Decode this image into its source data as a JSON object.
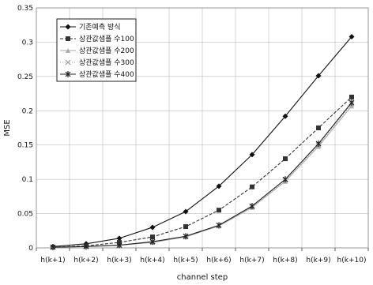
{
  "chart_data": {
    "type": "line",
    "title": "",
    "xlabel": "channel step",
    "ylabel": "MSE",
    "categories": [
      "h(k+1)",
      "h(k+2)",
      "h(k+3)",
      "h(k+4)",
      "h(k+5)",
      "h(k+6)",
      "h(k+7)",
      "h(k+8)",
      "h(k+9)",
      "h(k+10)"
    ],
    "ylim": [
      0,
      0.35
    ],
    "yticks": [
      0,
      0.05,
      0.1,
      0.15,
      0.2,
      0.25,
      0.3,
      0.35
    ],
    "ytick_labels": [
      "0",
      "0.05",
      "0.1",
      "0.15",
      "0.2",
      "0.25",
      "0.3",
      "0.35"
    ],
    "grid": true,
    "legend_position": "top-left",
    "series": [
      {
        "name": "기존예측 방식",
        "marker": "diamond",
        "color": "#111111",
        "dash": "",
        "values": [
          0.002,
          0.006,
          0.014,
          0.03,
          0.053,
          0.09,
          0.136,
          0.192,
          0.251,
          0.308
        ]
      },
      {
        "name": "상관값샘플 수100",
        "marker": "square",
        "color": "#333333",
        "dash": "4,2",
        "values": [
          0.001,
          0.003,
          0.008,
          0.016,
          0.031,
          0.055,
          0.089,
          0.13,
          0.175,
          0.22
        ]
      },
      {
        "name": "상관값샘플 수200",
        "marker": "triangle",
        "color": "#aaaaaa",
        "dash": "",
        "values": [
          0.001,
          0.002,
          0.004,
          0.008,
          0.016,
          0.032,
          0.059,
          0.097,
          0.148,
          0.207
        ]
      },
      {
        "name": "상관값샘플 수300",
        "marker": "x",
        "color": "#999999",
        "dash": "1,2",
        "values": [
          0.001,
          0.002,
          0.004,
          0.009,
          0.017,
          0.033,
          0.06,
          0.099,
          0.15,
          0.21
        ]
      },
      {
        "name": "상관값샘플 수400",
        "marker": "star",
        "color": "#222222",
        "dash": "",
        "values": [
          0.001,
          0.002,
          0.004,
          0.009,
          0.017,
          0.033,
          0.061,
          0.1,
          0.152,
          0.212
        ]
      }
    ]
  }
}
